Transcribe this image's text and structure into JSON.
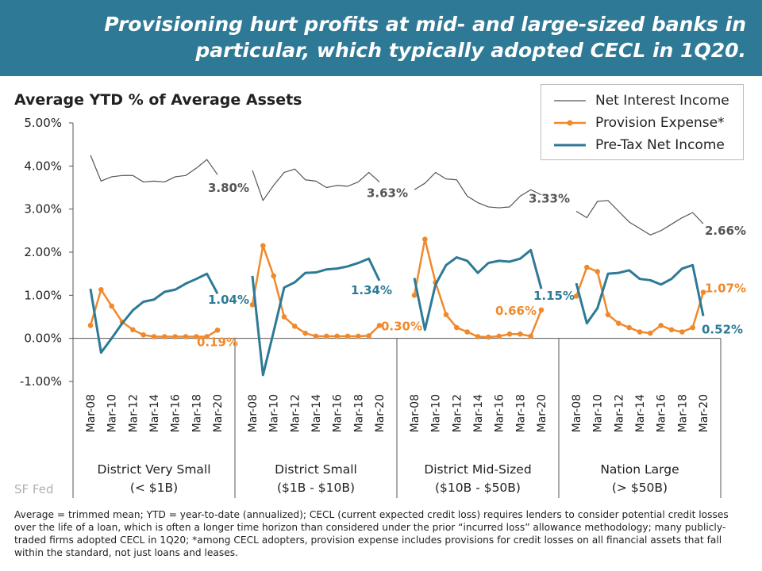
{
  "header": {
    "title": "Provisioning hurt profits at mid- and large-sized banks in particular, which typically adopted CECL in 1Q20."
  },
  "chart_data": {
    "type": "line",
    "title": "Average YTD % of Average Assets",
    "y_ticks": [
      "5.00%",
      "4.00%",
      "3.00%",
      "2.00%",
      "1.00%",
      "0.00%",
      "-1.00%"
    ],
    "ylim": [
      -1,
      5
    ],
    "grid": false,
    "legend_position": "top-right",
    "x_tick_labels": [
      "Mar-08",
      "Mar-10",
      "Mar-12",
      "Mar-14",
      "Mar-16",
      "Mar-18",
      "Mar-20"
    ],
    "groups": [
      {
        "label_line1": "District Very Small",
        "label_line2": "(< $1B)",
        "x": [
          "Mar-08",
          "Mar-09",
          "Mar-10",
          "Mar-11",
          "Mar-12",
          "Mar-13",
          "Mar-14",
          "Mar-15",
          "Mar-16",
          "Mar-17",
          "Mar-18",
          "Mar-19",
          "Mar-20"
        ],
        "series": [
          {
            "key": "nii",
            "values": [
              4.25,
              3.65,
              3.75,
              3.78,
              3.78,
              3.63,
              3.65,
              3.63,
              3.75,
              3.78,
              3.95,
              4.15,
              3.8
            ],
            "end_label": "3.80%"
          },
          {
            "key": "prov",
            "values": [
              0.3,
              1.13,
              0.75,
              0.38,
              0.2,
              0.08,
              0.04,
              0.04,
              0.04,
              0.04,
              0.04,
              0.04,
              0.19
            ],
            "end_label": "0.19%"
          },
          {
            "key": "ptni",
            "values": [
              1.15,
              -0.33,
              0.0,
              0.35,
              0.65,
              0.85,
              0.9,
              1.08,
              1.13,
              1.27,
              1.38,
              1.5,
              1.04
            ],
            "end_label": "1.04%"
          }
        ]
      },
      {
        "label_line1": "District Small",
        "label_line2": "($1B - $10B)",
        "x": [
          "Mar-08",
          "Mar-09",
          "Mar-10",
          "Mar-11",
          "Mar-12",
          "Mar-13",
          "Mar-14",
          "Mar-15",
          "Mar-16",
          "Mar-17",
          "Mar-18",
          "Mar-19",
          "Mar-20"
        ],
        "series": [
          {
            "key": "nii",
            "values": [
              3.9,
              3.2,
              3.55,
              3.85,
              3.93,
              3.68,
              3.65,
              3.5,
              3.55,
              3.53,
              3.63,
              3.85,
              3.63
            ],
            "end_label": "3.63%"
          },
          {
            "key": "prov",
            "values": [
              0.78,
              2.15,
              1.45,
              0.5,
              0.28,
              0.12,
              0.05,
              0.05,
              0.05,
              0.05,
              0.05,
              0.06,
              0.3
            ],
            "end_label": "0.30%"
          },
          {
            "key": "ptni",
            "values": [
              1.45,
              -0.85,
              0.15,
              1.18,
              1.3,
              1.52,
              1.53,
              1.6,
              1.62,
              1.67,
              1.75,
              1.85,
              1.34
            ],
            "end_label": "1.34%"
          }
        ]
      },
      {
        "label_line1": "District Mid-Sized",
        "label_line2": "($10B - $50B)",
        "x": [
          "Mar-08",
          "Mar-09",
          "Mar-10",
          "Mar-11",
          "Mar-12",
          "Mar-13",
          "Mar-14",
          "Mar-15",
          "Mar-16",
          "Mar-17",
          "Mar-18",
          "Mar-19",
          "Mar-20"
        ],
        "series": [
          {
            "key": "nii",
            "values": [
              3.45,
              3.6,
              3.85,
              3.7,
              3.68,
              3.3,
              3.15,
              3.05,
              3.03,
              3.05,
              3.3,
              3.45,
              3.33
            ],
            "end_label": "3.33%"
          },
          {
            "key": "prov",
            "values": [
              1.0,
              2.3,
              1.3,
              0.55,
              0.25,
              0.15,
              0.04,
              0.03,
              0.05,
              0.1,
              0.1,
              0.05,
              0.66
            ],
            "end_label": "0.66%"
          },
          {
            "key": "ptni",
            "values": [
              1.4,
              0.2,
              1.25,
              1.7,
              1.88,
              1.8,
              1.52,
              1.75,
              1.8,
              1.78,
              1.85,
              2.05,
              1.15
            ],
            "end_label": "1.15%"
          }
        ]
      },
      {
        "label_line1": "Nation Large",
        "label_line2": "(> $50B)",
        "x": [
          "Mar-08",
          "Mar-09",
          "Mar-10",
          "Mar-11",
          "Mar-12",
          "Mar-13",
          "Mar-14",
          "Mar-15",
          "Mar-16",
          "Mar-17",
          "Mar-18",
          "Mar-19",
          "Mar-20"
        ],
        "series": [
          {
            "key": "nii",
            "values": [
              2.95,
              2.8,
              3.18,
              3.2,
              2.95,
              2.7,
              2.55,
              2.4,
              2.5,
              2.65,
              2.8,
              2.92,
              2.66
            ],
            "end_label": "2.66%"
          },
          {
            "key": "prov",
            "values": [
              0.98,
              1.65,
              1.55,
              0.55,
              0.35,
              0.25,
              0.15,
              0.12,
              0.3,
              0.2,
              0.15,
              0.25,
              1.07
            ],
            "end_label": "1.07%"
          },
          {
            "key": "ptni",
            "values": [
              1.28,
              0.35,
              0.7,
              1.5,
              1.52,
              1.58,
              1.38,
              1.35,
              1.25,
              1.38,
              1.62,
              1.7,
              0.52
            ],
            "end_label": "0.52%"
          }
        ]
      }
    ],
    "legend": [
      {
        "key": "nii",
        "label": "Net Interest Income"
      },
      {
        "key": "prov",
        "label": "Provision Expense*"
      },
      {
        "key": "ptni",
        "label": "Pre-Tax Net Income"
      }
    ],
    "colors": {
      "nii": "#555555",
      "prov": "#f0892b",
      "ptni": "#2e7a96",
      "axis": "#555555"
    }
  },
  "source": "SF Fed",
  "footnote": "Average = trimmed mean; YTD = year-to-date (annualized); CECL (current expected credit loss) requires lenders to consider potential credit losses over the life of a loan, which is often a longer time horizon than considered under the prior “incurred loss” allowance methodology; many publicly-traded firms adopted CECL in 1Q20; *among CECL adopters, provision expense includes provisions for credit losses on all financial assets that fall within the standard, not just loans and leases."
}
